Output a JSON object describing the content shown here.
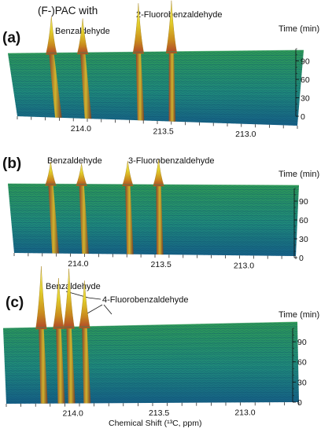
{
  "heading": "(F-)PAC with",
  "colors": {
    "surface_low": "#1a6f8f",
    "surface_mid": "#2f9a5a",
    "peak_mid": "#d4c21a",
    "peak_top": "#f4ec60",
    "axis": "#111111"
  },
  "chart_data": [
    {
      "type": "area",
      "panel_label": "(a)",
      "x_unit": "ppm",
      "xlim": [
        214.4,
        212.7
      ],
      "x_ticks": [
        "214.0",
        "213.5",
        "213.0"
      ],
      "ylabel": "Time (min)",
      "y_ticks": [
        "0",
        "30",
        "60",
        "90"
      ],
      "ylim": [
        0,
        110
      ],
      "peaks": [
        {
          "x": 214.15,
          "height": 0.75
        },
        {
          "x": 213.97,
          "height": 0.7
        },
        {
          "x": 213.65,
          "height": 1.0
        },
        {
          "x": 213.46,
          "height": 1.05
        }
      ],
      "annotations": [
        {
          "text": "Benzaldehyde"
        },
        {
          "text": "2-Fluorobenzaldehyde"
        }
      ]
    },
    {
      "type": "area",
      "panel_label": "(b)",
      "x_unit": "ppm",
      "xlim": [
        214.4,
        212.7
      ],
      "x_ticks": [
        "214.0",
        "213.5",
        "213.0"
      ],
      "ylabel": "Time (min)",
      "y_ticks": [
        "0",
        "30",
        "60",
        "90"
      ],
      "ylim": [
        0,
        110
      ],
      "peaks": [
        {
          "x": 214.15,
          "height": 0.7
        },
        {
          "x": 213.97,
          "height": 0.65
        },
        {
          "x": 213.7,
          "height": 0.75
        },
        {
          "x": 213.52,
          "height": 0.8
        }
      ],
      "annotations": [
        {
          "text": "Benzaldehyde"
        },
        {
          "text": "3-Fluorobenzaldehyde"
        }
      ]
    },
    {
      "type": "area",
      "panel_label": "(c)",
      "x_unit": "ppm",
      "xlim": [
        214.4,
        212.7
      ],
      "x_ticks": [
        "214.0",
        "213.5",
        "213.0"
      ],
      "xlabel": "Chemical Shift (¹³C, ppm)",
      "ylabel": "Time (min)",
      "y_ticks": [
        "0",
        "30",
        "60",
        "90"
      ],
      "ylim": [
        0,
        110
      ],
      "peaks": [
        {
          "x": 214.18,
          "height": 1.0
        },
        {
          "x": 214.08,
          "height": 0.8
        },
        {
          "x": 214.02,
          "height": 0.95
        },
        {
          "x": 213.93,
          "height": 0.75
        }
      ],
      "annotations": [
        {
          "text": "Benzaldehyde"
        },
        {
          "text": "4-Fluorobenzaldehyde"
        }
      ]
    }
  ]
}
